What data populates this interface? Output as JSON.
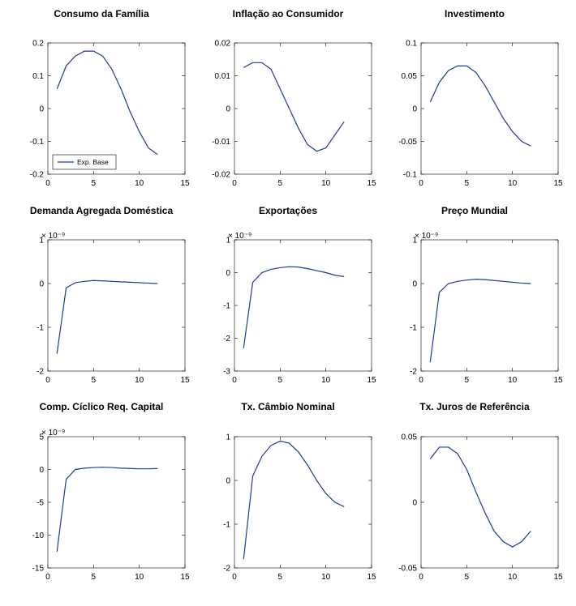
{
  "global": {
    "background_color": "#ffffff",
    "series_color": "#1f3a93",
    "axis_color": "#000000",
    "title_fontsize": 12,
    "tick_fontsize": 10,
    "line_width": 1.2,
    "legend_label": "Exp. Base"
  },
  "panels": [
    {
      "title": "Consumo da Família",
      "type": "line",
      "xlim": [
        0,
        15
      ],
      "xtick_step": 5,
      "ylim": [
        -0.2,
        0.2
      ],
      "ytick_step": 0.1,
      "multiplier": null,
      "show_legend": true,
      "x": [
        1,
        2,
        3,
        4,
        5,
        6,
        7,
        8,
        9,
        10,
        11,
        12
      ],
      "y": [
        0.06,
        0.13,
        0.16,
        0.175,
        0.175,
        0.16,
        0.12,
        0.06,
        -0.01,
        -0.07,
        -0.12,
        -0.14
      ]
    },
    {
      "title": "Inflação ao Consumidor",
      "type": "line",
      "xlim": [
        0,
        15
      ],
      "xtick_step": 5,
      "ylim": [
        -0.02,
        0.02
      ],
      "ytick_step": 0.01,
      "multiplier": null,
      "show_legend": false,
      "x": [
        1,
        2,
        3,
        4,
        5,
        6,
        7,
        8,
        9,
        10,
        11,
        12
      ],
      "y": [
        0.0125,
        0.014,
        0.014,
        0.012,
        0.006,
        0.0,
        -0.006,
        -0.011,
        -0.013,
        -0.012,
        -0.008,
        -0.004
      ]
    },
    {
      "title": "Investimento",
      "type": "line",
      "xlim": [
        0,
        15
      ],
      "xtick_step": 5,
      "ylim": [
        -0.1,
        0.1
      ],
      "ytick_step": 0.05,
      "multiplier": null,
      "show_legend": false,
      "x": [
        1,
        2,
        3,
        4,
        5,
        6,
        7,
        8,
        9,
        10,
        11,
        12
      ],
      "y": [
        0.01,
        0.04,
        0.058,
        0.065,
        0.065,
        0.055,
        0.035,
        0.01,
        -0.015,
        -0.035,
        -0.05,
        -0.057
      ]
    },
    {
      "title": "Demanda Agregada Doméstica",
      "type": "line",
      "xlim": [
        0,
        15
      ],
      "xtick_step": 5,
      "ylim": [
        -2,
        1
      ],
      "ytick_step": 1,
      "multiplier": "× 10⁻⁹",
      "show_legend": false,
      "x": [
        1,
        2,
        3,
        4,
        5,
        6,
        7,
        8,
        9,
        10,
        11,
        12
      ],
      "y": [
        -1.6,
        -0.1,
        0.02,
        0.05,
        0.07,
        0.06,
        0.05,
        0.04,
        0.03,
        0.02,
        0.01,
        0.0
      ]
    },
    {
      "title": "Exportações",
      "type": "line",
      "xlim": [
        0,
        15
      ],
      "xtick_step": 5,
      "ylim": [
        -3,
        1
      ],
      "ytick_step": 1,
      "multiplier": "× 10⁻⁹",
      "show_legend": false,
      "x": [
        1,
        2,
        3,
        4,
        5,
        6,
        7,
        8,
        9,
        10,
        11,
        12
      ],
      "y": [
        -2.3,
        -0.3,
        0.0,
        0.1,
        0.15,
        0.18,
        0.17,
        0.12,
        0.06,
        0.0,
        -0.08,
        -0.12
      ]
    },
    {
      "title": "Preço Mundial",
      "type": "line",
      "xlim": [
        0,
        15
      ],
      "xtick_step": 5,
      "ylim": [
        -2,
        1
      ],
      "ytick_step": 1,
      "multiplier": "× 10⁻⁹",
      "show_legend": false,
      "x": [
        1,
        2,
        3,
        4,
        5,
        6,
        7,
        8,
        9,
        10,
        11,
        12
      ],
      "y": [
        -1.8,
        -0.2,
        0.0,
        0.05,
        0.08,
        0.1,
        0.09,
        0.07,
        0.05,
        0.03,
        0.01,
        0.0
      ]
    },
    {
      "title": "Comp. Cíclico Req. Capital",
      "type": "line",
      "xlim": [
        0,
        15
      ],
      "xtick_step": 5,
      "ylim": [
        -15,
        5
      ],
      "ytick_step": 5,
      "multiplier": "× 10⁻⁹",
      "show_legend": false,
      "x": [
        1,
        2,
        3,
        4,
        5,
        6,
        7,
        8,
        9,
        10,
        11,
        12
      ],
      "y": [
        -12.5,
        -1.5,
        0.0,
        0.2,
        0.3,
        0.35,
        0.3,
        0.2,
        0.15,
        0.1,
        0.1,
        0.15
      ]
    },
    {
      "title": "Tx. Câmbio Nominal",
      "type": "line",
      "xlim": [
        0,
        15
      ],
      "xtick_step": 5,
      "ylim": [
        -2,
        1
      ],
      "ytick_step": 1,
      "multiplier": null,
      "show_legend": false,
      "x": [
        1,
        2,
        3,
        4,
        5,
        6,
        7,
        8,
        9,
        10,
        11,
        12
      ],
      "y": [
        -1.8,
        0.1,
        0.55,
        0.8,
        0.9,
        0.85,
        0.65,
        0.35,
        0.0,
        -0.3,
        -0.5,
        -0.6
      ]
    },
    {
      "title": "Tx. Juros de Referência",
      "type": "line",
      "xlim": [
        0,
        15
      ],
      "xtick_step": 5,
      "ylim": [
        -0.05,
        0.05
      ],
      "ytick_step": 0.05,
      "multiplier": null,
      "show_legend": false,
      "x": [
        1,
        2,
        3,
        4,
        5,
        6,
        7,
        8,
        9,
        10,
        11,
        12
      ],
      "y": [
        0.033,
        0.042,
        0.042,
        0.037,
        0.025,
        0.008,
        -0.008,
        -0.022,
        -0.03,
        -0.034,
        -0.03,
        -0.022
      ]
    }
  ]
}
